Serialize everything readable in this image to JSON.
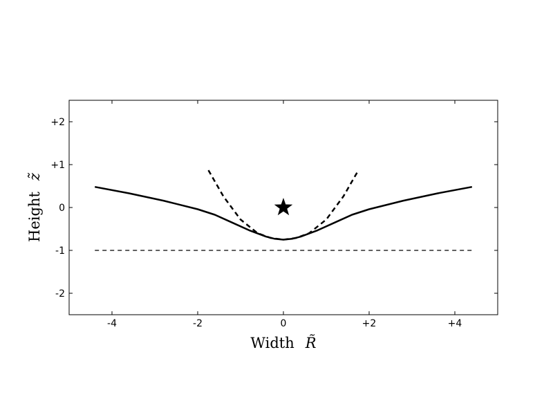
{
  "chart_data": {
    "type": "line",
    "xlabel": "Width",
    "xlabel_symbol": "R̃",
    "ylabel": "Height",
    "ylabel_symbol": "z̃",
    "xlim": [
      -5,
      5
    ],
    "ylim": [
      -2.5,
      2.5
    ],
    "grid": false,
    "legend": "none",
    "xticks": [
      {
        "value": -4,
        "label": "-4"
      },
      {
        "value": -2,
        "label": "-2"
      },
      {
        "value": 0,
        "label": "0"
      },
      {
        "value": 2,
        "label": "+2"
      },
      {
        "value": 4,
        "label": "+4"
      }
    ],
    "yticks": [
      {
        "value": 2,
        "label": "+2"
      },
      {
        "value": 1,
        "label": "+1"
      },
      {
        "value": 0,
        "label": "0"
      },
      {
        "value": -1,
        "label": "-1"
      },
      {
        "value": -2,
        "label": "-2"
      }
    ],
    "series": [
      {
        "style": "solid",
        "x": [
          -4.4,
          -3.6,
          -2.8,
          -2.0,
          -1.6,
          -1.2,
          -0.8,
          -0.4,
          -0.2,
          0,
          0.2,
          0.4,
          0.8,
          1.2,
          1.6,
          2.0,
          2.8,
          3.6,
          4.4
        ],
        "y": [
          0.48,
          0.33,
          0.16,
          -0.04,
          -0.17,
          -0.35,
          -0.53,
          -0.68,
          -0.73,
          -0.75,
          -0.73,
          -0.68,
          -0.53,
          -0.35,
          -0.17,
          -0.04,
          0.16,
          0.33,
          0.48
        ]
      },
      {
        "style": "dashed",
        "x": [
          -1.75,
          -1.4,
          -1.0,
          -0.6,
          -0.3,
          0,
          0.3,
          0.6,
          1.0,
          1.4,
          1.75
        ],
        "y": [
          0.87,
          0.26,
          -0.28,
          -0.6,
          -0.71,
          -0.75,
          -0.71,
          -0.6,
          -0.28,
          0.26,
          0.87
        ]
      },
      {
        "style": "thin-dashed",
        "x": [
          -4.4,
          4.4
        ],
        "y": [
          -1,
          -1
        ]
      }
    ],
    "markers": [
      {
        "shape": "star",
        "x": 0,
        "y": 0,
        "color": "#000000"
      }
    ]
  }
}
